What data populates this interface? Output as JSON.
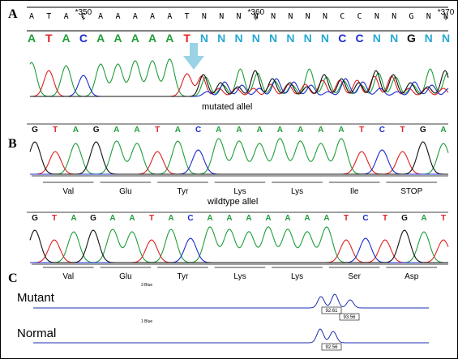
{
  "panels": {
    "a": "A",
    "b": "B",
    "c": "C"
  },
  "colors": {
    "A": "#1f9e3a",
    "C": "#1a2bd0",
    "G": "#111111",
    "T": "#e02020",
    "N": "#27a9d6",
    "arrow": "#9ad3e6",
    "size_trace": "#1d2fb0"
  },
  "mutant_chrom": {
    "ref_seq": [
      "A",
      "T",
      "A",
      "C",
      "A",
      "A",
      "A",
      "A",
      "A",
      "T",
      "N",
      "N",
      "N",
      "N",
      "N",
      "N",
      "N",
      "N",
      "C",
      "C",
      "N",
      "N",
      "G",
      "N",
      "N"
    ],
    "calls": [
      "A",
      "T",
      "A",
      "C",
      "A",
      "A",
      "A",
      "A",
      "A",
      "T",
      "N",
      "N",
      "N",
      "N",
      "N",
      "N",
      "N",
      "N",
      "C",
      "C",
      "N",
      "N",
      "G",
      "N",
      "N"
    ],
    "positions": [
      {
        "label": "*350",
        "index": 3
      },
      {
        "label": "*360",
        "index": 13
      },
      {
        "label": "*370",
        "index": 24
      }
    ],
    "caption": "mutated allel"
  },
  "wildtype_top": {
    "bases": [
      "G",
      "T",
      "A",
      "G",
      "A",
      "A",
      "T",
      "A",
      "C",
      "A",
      "A",
      "A",
      "A",
      "A",
      "A",
      "A",
      "T",
      "C",
      "T",
      "G",
      "A"
    ],
    "codons": [
      "Val",
      "Glu",
      "Tyr",
      "Lys",
      "Lys",
      "Ile",
      "STOP"
    ],
    "caption": "wildtype allel"
  },
  "wildtype_bottom": {
    "bases": [
      "G",
      "T",
      "A",
      "G",
      "A",
      "A",
      "T",
      "A",
      "C",
      "A",
      "A",
      "A",
      "A",
      "A",
      "A",
      "A",
      "T",
      "C",
      "T",
      "G",
      "A",
      "T"
    ],
    "codons": [
      "Val",
      "Glu",
      "Tyr",
      "Lys",
      "Lys",
      "Ser",
      "Asp"
    ]
  },
  "fragment_analysis": {
    "mutant": {
      "label": "Mutant",
      "dye": "3 Blue",
      "sizes": [
        "92.61",
        "93.56"
      ]
    },
    "normal": {
      "label": "Normal",
      "dye": "1 Blue",
      "sizes": [
        "92.56"
      ]
    }
  }
}
